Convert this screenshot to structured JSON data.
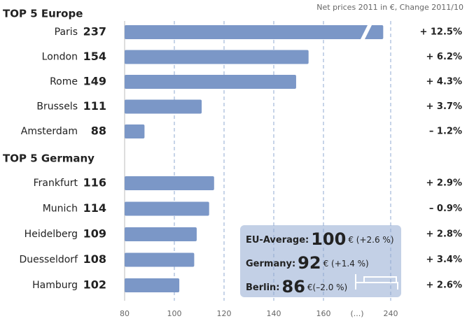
{
  "chart_data": {
    "type": "bar",
    "orientation": "horizontal",
    "subtitle": "Net prices 2011 in €, Change 2011/10",
    "groups": [
      {
        "title": "TOP 5 Europe",
        "categories": [
          "Paris",
          "London",
          "Rome",
          "Brussels",
          "Amsterdam"
        ],
        "values": [
          237,
          154,
          149,
          111,
          88
        ],
        "changes": [
          "+ 12.5%",
          "+ 6.2%",
          "+ 4.3%",
          "+ 3.7%",
          "– 1.2%"
        ]
      },
      {
        "title": "TOP 5 Germany",
        "categories": [
          "Frankfurt",
          "Munich",
          "Heidelberg",
          "Duesseldorf",
          "Hamburg"
        ],
        "values": [
          116,
          114,
          109,
          108,
          102
        ],
        "changes": [
          "+ 2.9%",
          "– 0.9%",
          "+ 2.8%",
          "+ 3.4%",
          "+ 2.6%"
        ]
      }
    ],
    "color": "#7b97c7",
    "xlim": [
      80,
      240
    ],
    "xticks": [
      80,
      100,
      120,
      140,
      160,
      240
    ],
    "axis_break": true,
    "axis_break_label": "(...)",
    "grid": true,
    "annotations": [
      {
        "label": "EU-Average:",
        "value": 100,
        "note": "€ (+2.6 %)"
      },
      {
        "label": "Germany:",
        "value": 92,
        "note": "€ (+1.4 %)"
      },
      {
        "label": "Berlin:",
        "value": 86,
        "note": "€(–2.0 %)"
      }
    ]
  }
}
